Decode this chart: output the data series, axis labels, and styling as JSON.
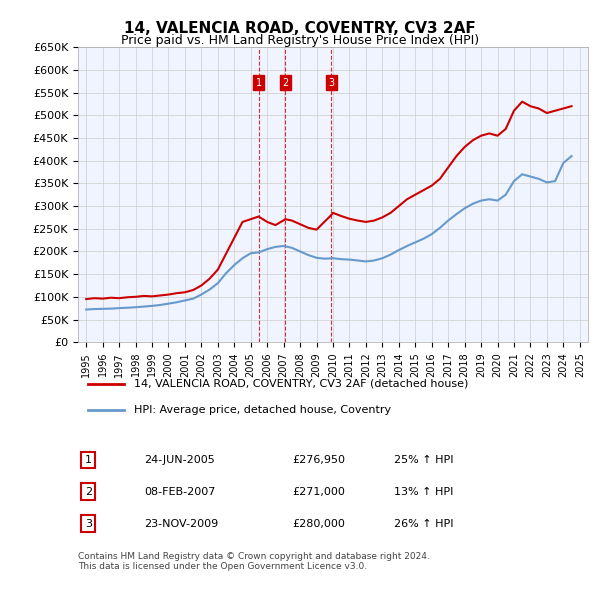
{
  "title": "14, VALENCIA ROAD, COVENTRY, CV3 2AF",
  "subtitle": "Price paid vs. HM Land Registry's House Price Index (HPI)",
  "footer": "Contains HM Land Registry data © Crown copyright and database right 2024.\nThis data is licensed under the Open Government Licence v3.0.",
  "legend_line1": "14, VALENCIA ROAD, COVENTRY, CV3 2AF (detached house)",
  "legend_line2": "HPI: Average price, detached house, Coventry",
  "transactions": [
    {
      "num": 1,
      "date": "24-JUN-2005",
      "price": "£276,950",
      "hpi": "25% ↑ HPI",
      "x_year": 2005.48
    },
    {
      "num": 2,
      "date": "08-FEB-2007",
      "price": "£271,000",
      "hpi": "13% ↑ HPI",
      "x_year": 2007.11
    },
    {
      "num": 3,
      "date": "23-NOV-2009",
      "price": "£280,000",
      "hpi": "26% ↑ HPI",
      "x_year": 2009.89
    }
  ],
  "red_line_x": [
    1995,
    1995.5,
    1996,
    1996.5,
    1997,
    1997.5,
    1998,
    1998.5,
    1999,
    1999.5,
    2000,
    2000.5,
    2001,
    2001.5,
    2002,
    2002.5,
    2003,
    2003.5,
    2004,
    2004.5,
    2005.48,
    2006,
    2006.5,
    2007.11,
    2007.5,
    2008,
    2008.5,
    2009,
    2009.89,
    2010,
    2010.5,
    2011,
    2011.5,
    2012,
    2012.5,
    2013,
    2013.5,
    2014,
    2014.5,
    2015,
    2015.5,
    2016,
    2016.5,
    2017,
    2017.5,
    2018,
    2018.5,
    2019,
    2019.5,
    2020,
    2020.5,
    2021,
    2021.5,
    2022,
    2022.5,
    2023,
    2023.5,
    2024,
    2024.5
  ],
  "red_line_y": [
    95000,
    97000,
    96000,
    98000,
    97000,
    99000,
    100000,
    102000,
    101000,
    103000,
    105000,
    108000,
    110000,
    115000,
    125000,
    140000,
    160000,
    195000,
    230000,
    265000,
    276950,
    265000,
    258000,
    271000,
    268000,
    260000,
    252000,
    248000,
    280000,
    285000,
    278000,
    272000,
    268000,
    265000,
    268000,
    275000,
    285000,
    300000,
    315000,
    325000,
    335000,
    345000,
    360000,
    385000,
    410000,
    430000,
    445000,
    455000,
    460000,
    455000,
    470000,
    510000,
    530000,
    520000,
    515000,
    505000,
    510000,
    515000,
    520000
  ],
  "blue_line_x": [
    1995,
    1995.5,
    1996,
    1996.5,
    1997,
    1997.5,
    1998,
    1998.5,
    1999,
    1999.5,
    2000,
    2000.5,
    2001,
    2001.5,
    2002,
    2002.5,
    2003,
    2003.5,
    2004,
    2004.5,
    2005,
    2005.5,
    2006,
    2006.5,
    2007,
    2007.5,
    2008,
    2008.5,
    2009,
    2009.5,
    2010,
    2010.5,
    2011,
    2011.5,
    2012,
    2012.5,
    2013,
    2013.5,
    2014,
    2014.5,
    2015,
    2015.5,
    2016,
    2016.5,
    2017,
    2017.5,
    2018,
    2018.5,
    2019,
    2019.5,
    2020,
    2020.5,
    2021,
    2021.5,
    2022,
    2022.5,
    2023,
    2023.5,
    2024,
    2024.5
  ],
  "blue_line_y": [
    72000,
    73000,
    73500,
    74000,
    75000,
    76000,
    77000,
    78500,
    80000,
    82000,
    85000,
    88000,
    92000,
    96000,
    105000,
    116000,
    130000,
    152000,
    170000,
    185000,
    196000,
    198000,
    205000,
    210000,
    212000,
    208000,
    200000,
    192000,
    186000,
    184000,
    185000,
    183000,
    182000,
    180000,
    178000,
    180000,
    185000,
    193000,
    203000,
    212000,
    220000,
    228000,
    238000,
    252000,
    268000,
    282000,
    295000,
    305000,
    312000,
    315000,
    312000,
    325000,
    355000,
    370000,
    365000,
    360000,
    352000,
    355000,
    395000,
    410000
  ],
  "ylim": [
    0,
    650000
  ],
  "xlim": [
    1994.5,
    2025.5
  ],
  "yticks": [
    0,
    50000,
    100000,
    150000,
    200000,
    250000,
    300000,
    350000,
    400000,
    450000,
    500000,
    550000,
    600000,
    650000
  ],
  "xticks": [
    1995,
    1996,
    1997,
    1998,
    1999,
    2000,
    2001,
    2002,
    2003,
    2004,
    2005,
    2006,
    2007,
    2008,
    2009,
    2010,
    2011,
    2012,
    2013,
    2014,
    2015,
    2016,
    2017,
    2018,
    2019,
    2020,
    2021,
    2022,
    2023,
    2024,
    2025
  ],
  "red_color": "#cc0000",
  "blue_color": "#6699cc",
  "vline_color": "#cc0000",
  "grid_color": "#cccccc",
  "bg_color": "#f0f4ff",
  "marker_fill": "#cc0000",
  "marker_text_color": "white"
}
